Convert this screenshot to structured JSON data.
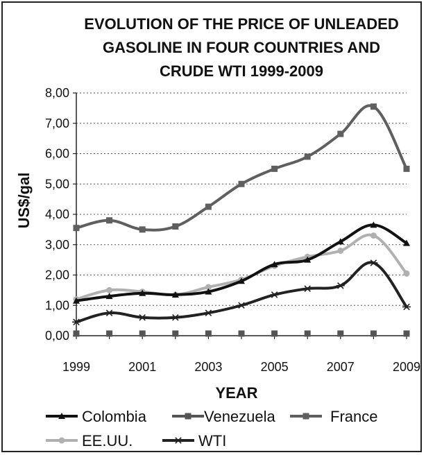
{
  "chart_data": {
    "type": "line",
    "title_lines": [
      "EVOLUTION OF THE PRICE OF UNLEADED",
      "GASOLINE IN FOUR COUNTRIES AND",
      "CRUDE WTI  1999-2009"
    ],
    "xlabel": "YEAR",
    "ylabel": "US$/gal",
    "x": [
      1999,
      2000,
      2001,
      2002,
      2003,
      2004,
      2005,
      2006,
      2007,
      2008,
      2009
    ],
    "x_tick_labels": [
      "1999",
      "2001",
      "2003",
      "2005",
      "2007",
      "2009"
    ],
    "y_tick_labels": [
      "0,00",
      "1,00",
      "2,00",
      "3,00",
      "4,00",
      "5,00",
      "6,00",
      "7,00",
      "8,00"
    ],
    "ylim": [
      0,
      8
    ],
    "grid": "horizontal",
    "legend_position": "bottom",
    "series": [
      {
        "name": "Colombia",
        "marker": "triangle",
        "color": "#111111",
        "values": [
          1.15,
          1.3,
          1.4,
          1.35,
          1.45,
          1.8,
          2.35,
          2.5,
          3.1,
          3.65,
          3.05
        ]
      },
      {
        "name": "Venezuela",
        "marker": "square",
        "color": "#555555",
        "values": [
          0.07,
          0.07,
          0.07,
          0.07,
          0.07,
          0.07,
          0.07,
          0.07,
          0.07,
          0.07,
          0.07
        ]
      },
      {
        "name": "France",
        "marker": "square",
        "color": "#5f5f5f",
        "values": [
          3.55,
          3.8,
          3.5,
          3.6,
          4.25,
          5.0,
          5.5,
          5.9,
          6.65,
          7.55,
          5.5
        ]
      },
      {
        "name": "EE.UU.",
        "marker": "circle",
        "color": "#b0b0b0",
        "values": [
          1.2,
          1.5,
          1.45,
          1.35,
          1.6,
          1.85,
          2.3,
          2.6,
          2.8,
          3.3,
          2.05
        ]
      },
      {
        "name": "WTI",
        "marker": "asterisk",
        "color": "#222222",
        "values": [
          0.45,
          0.75,
          0.6,
          0.6,
          0.75,
          1.0,
          1.35,
          1.55,
          1.65,
          2.4,
          0.95
        ]
      }
    ]
  }
}
